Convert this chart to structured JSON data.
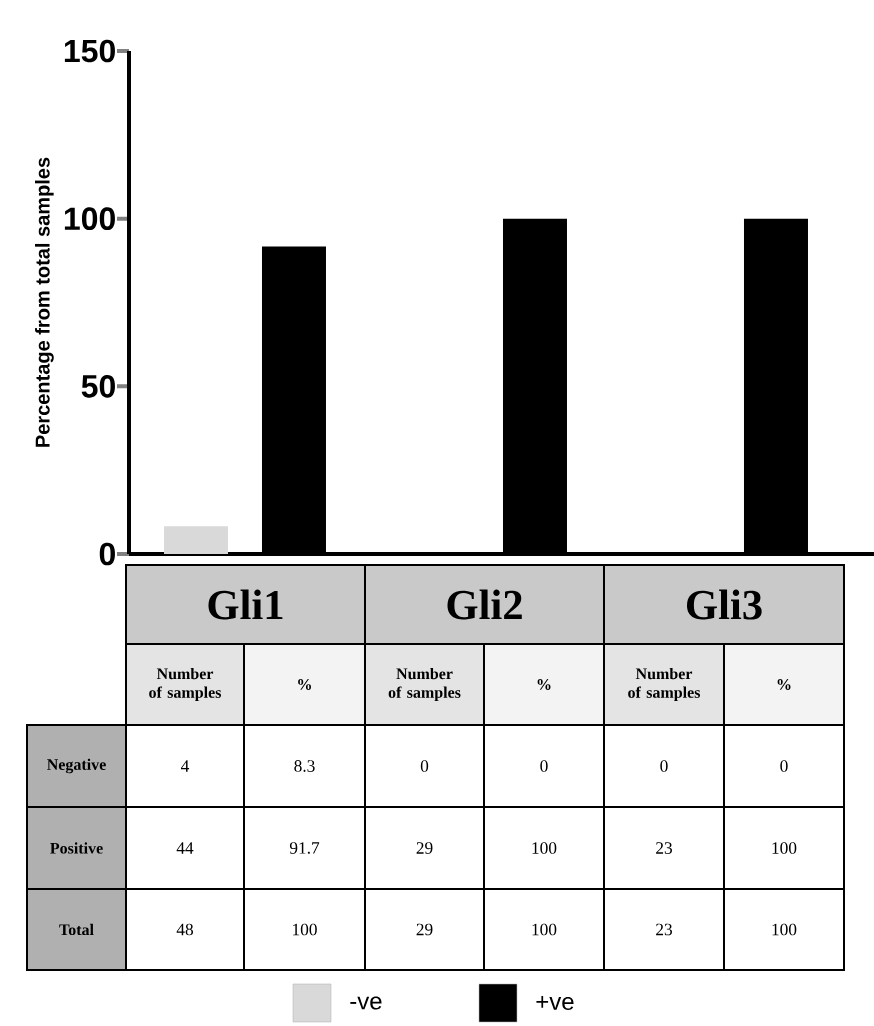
{
  "chart_data": {
    "type": "bar",
    "ylabel": "Percentage from total samples",
    "categories": [
      "Gli1",
      "Gli2",
      "Gli3"
    ],
    "series": [
      {
        "name": "-ve",
        "color": "#d9d9d9",
        "values": [
          8.3,
          0,
          0
        ],
        "value_labels": [
          "8.3",
          "0",
          "0"
        ]
      },
      {
        "name": "+ve",
        "color": "#000000",
        "values": [
          91.7,
          100,
          100
        ],
        "value_labels": [
          "91.7",
          "100",
          "100"
        ]
      }
    ],
    "ylim": [
      0,
      150
    ],
    "yticks": [
      0,
      50,
      100,
      150
    ],
    "legend": "bottom",
    "annotations": [
      "Number of samples",
      "%",
      "Negative",
      "Positive",
      "Total",
      "4",
      "0",
      "0",
      "44",
      "29",
      "23",
      "48",
      "29",
      "23",
      "100",
      "100",
      "100"
    ]
  }
}
